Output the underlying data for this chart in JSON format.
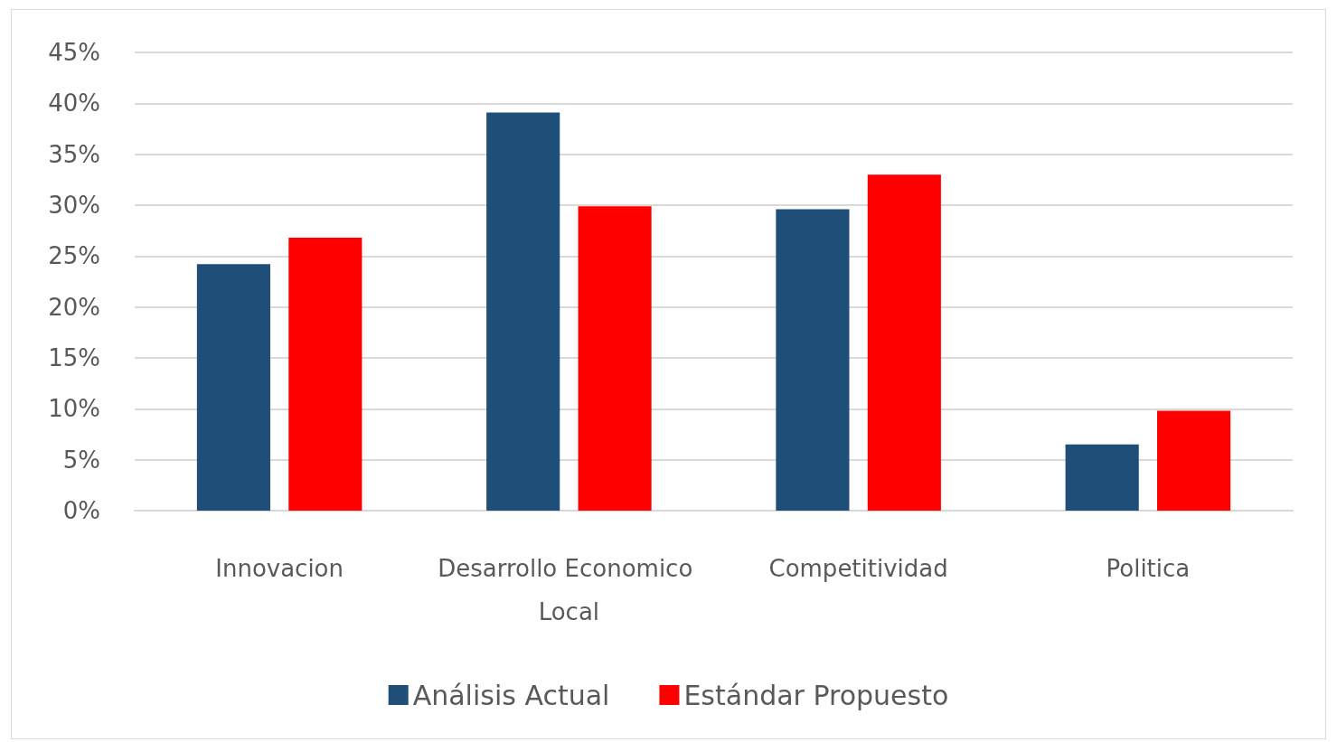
{
  "chart_data": {
    "type": "bar",
    "categories": [
      "Innovacion",
      "Desarrollo Economico Local",
      "Competitividad",
      "Politica"
    ],
    "series": [
      {
        "name": "Análisis Actual",
        "color": "#1f4e79",
        "values": [
          24.2,
          39.1,
          29.6,
          6.5
        ]
      },
      {
        "name": "Estándar Propuesto",
        "color": "#ff0000",
        "values": [
          26.8,
          29.9,
          33.0,
          9.8
        ]
      }
    ],
    "ylim": [
      0,
      45
    ],
    "yticks": [
      {
        "value": 0,
        "label": "0%"
      },
      {
        "value": 5,
        "label": "5%"
      },
      {
        "value": 10,
        "label": "10%"
      },
      {
        "value": 15,
        "label": "15%"
      },
      {
        "value": 20,
        "label": "20%"
      },
      {
        "value": 25,
        "label": "25%"
      },
      {
        "value": 30,
        "label": "30%"
      },
      {
        "value": 35,
        "label": "35%"
      },
      {
        "value": 40,
        "label": "40%"
      },
      {
        "value": 45,
        "label": "45%"
      }
    ],
    "grid": "y",
    "legend": "bottom"
  }
}
